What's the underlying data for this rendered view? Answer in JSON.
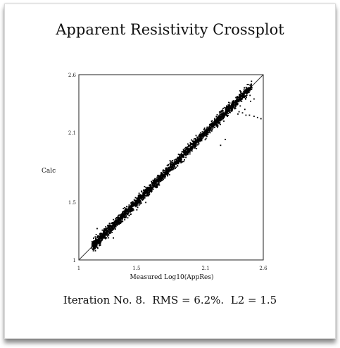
{
  "chart_data": {
    "type": "scatter",
    "title": "Apparent Resistivity Crossplot",
    "xlabel": "Measured Log10(AppRes)",
    "ylabel": "Calc",
    "xlim": [
      1,
      2.6
    ],
    "ylim": [
      1,
      2.6
    ],
    "x_ticks": [
      "1",
      "1.5",
      "2.1",
      "2.6"
    ],
    "x_tick_values": [
      1,
      1.5,
      2.1,
      2.6
    ],
    "y_ticks": [
      "1",
      "1.5",
      "2.1",
      "2.6"
    ],
    "y_tick_values": [
      1,
      1.5,
      2.1,
      2.6
    ],
    "reference_line": {
      "from": [
        1,
        1
      ],
      "to": [
        2.6,
        2.6
      ]
    },
    "point_cloud": {
      "count": 2600,
      "x_range": [
        1.12,
        2.5
      ],
      "relation": "y = x",
      "scatter_sd": 0.02
    },
    "outliers": [
      [
        2.39,
        2.28
      ],
      [
        2.42,
        2.27
      ],
      [
        2.45,
        2.25
      ],
      [
        2.48,
        2.25
      ],
      [
        2.52,
        2.24
      ],
      [
        2.55,
        2.23
      ],
      [
        2.58,
        2.22
      ],
      [
        2.36,
        2.31
      ],
      [
        2.33,
        2.33
      ],
      [
        2.4,
        2.33
      ],
      [
        2.44,
        2.3
      ],
      [
        2.3,
        2.36
      ],
      [
        2.38,
        2.26
      ],
      [
        2.23,
        1.99
      ],
      [
        2.27,
        2.04
      ],
      [
        2.21,
        2.2
      ],
      [
        1.91,
        1.85
      ],
      [
        1.3,
        1.19
      ],
      [
        2.49,
        2.37
      ],
      [
        2.52,
        2.39
      ]
    ],
    "grid": false,
    "caption": "Iteration No. 8.  RMS = 6.2%.  L2 = 1.5"
  }
}
